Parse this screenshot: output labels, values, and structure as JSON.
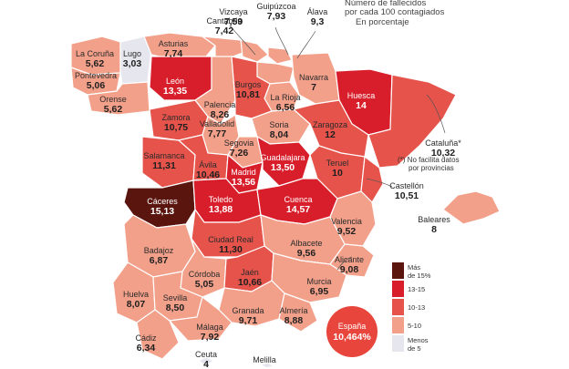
{
  "title_lines": [
    "Número de fallecidos",
    "por cada 100 contagiados",
    "En porcentaje"
  ],
  "colors": {
    "dark": "#5a150f",
    "red": "#d81e2b",
    "mid": "#e5534b",
    "light": "#f2a08a",
    "pale": "#e6e6ee",
    "sea": "#ffffff",
    "bubble": "#e8453c"
  },
  "legend": [
    {
      "label_lines": [
        "Más",
        "de 15%"
      ],
      "color_key": "dark"
    },
    {
      "label_lines": [
        "13-15"
      ],
      "color_key": "red"
    },
    {
      "label_lines": [
        "10-13"
      ],
      "color_key": "mid"
    },
    {
      "label_lines": [
        "5-10"
      ],
      "color_key": "light"
    },
    {
      "label_lines": [
        "Menos",
        "de 5"
      ],
      "color_key": "pale"
    }
  ],
  "provinces": [
    {
      "name": "La Coruña",
      "value": "5,62",
      "category": "light"
    },
    {
      "name": "Lugo",
      "value": "3,03",
      "category": "pale"
    },
    {
      "name": "Pontevedra",
      "value": "5,06",
      "category": "light"
    },
    {
      "name": "Orense",
      "value": "5,62",
      "category": "light"
    },
    {
      "name": "Asturias",
      "value": "7,74",
      "category": "light"
    },
    {
      "name": "Cantabria",
      "value": "7,42",
      "category": "light"
    },
    {
      "name": "Vizcaya",
      "value": "7,59",
      "category": "light"
    },
    {
      "name": "Guipúzcoa",
      "value": "7,93",
      "category": "light"
    },
    {
      "name": "Álava",
      "value": "9,3",
      "category": "light"
    },
    {
      "name": "Navarra",
      "value": "7",
      "category": "light"
    },
    {
      "name": "La Rioja",
      "value": "6,56",
      "category": "light"
    },
    {
      "name": "León",
      "value": "13,35",
      "category": "red"
    },
    {
      "name": "Palencia",
      "value": "8,26",
      "category": "light"
    },
    {
      "name": "Burgos",
      "value": "10,81",
      "category": "mid"
    },
    {
      "name": "Zamora",
      "value": "10,75",
      "category": "mid"
    },
    {
      "name": "Valladolid",
      "value": "7,77",
      "category": "light"
    },
    {
      "name": "Soria",
      "value": "8,04",
      "category": "light"
    },
    {
      "name": "Huesca",
      "value": "14",
      "category": "red"
    },
    {
      "name": "Zaragoza",
      "value": "12",
      "category": "mid"
    },
    {
      "name": "Cataluña*",
      "value": "10,32",
      "category": "mid"
    },
    {
      "name": "Segovia",
      "value": "7,26",
      "category": "light"
    },
    {
      "name": "Salamanca",
      "value": "11,31",
      "category": "mid"
    },
    {
      "name": "Ávila",
      "value": "10,46",
      "category": "mid"
    },
    {
      "name": "Madrid",
      "value": "13,56",
      "category": "red"
    },
    {
      "name": "Guadalajara",
      "value": "13,50",
      "category": "red"
    },
    {
      "name": "Teruel",
      "value": "10",
      "category": "mid"
    },
    {
      "name": "Castellón",
      "value": "10,51",
      "category": "mid"
    },
    {
      "name": "Cáceres",
      "value": "15,13",
      "category": "dark"
    },
    {
      "name": "Toledo",
      "value": "13,88",
      "category": "red"
    },
    {
      "name": "Cuenca",
      "value": "14,57",
      "category": "red"
    },
    {
      "name": "Valencia",
      "value": "9,52",
      "category": "light"
    },
    {
      "name": "Baleares",
      "value": "8",
      "category": "light"
    },
    {
      "name": "Badajoz",
      "value": "6,87",
      "category": "light"
    },
    {
      "name": "Ciudad Real",
      "value": "11,30",
      "category": "mid"
    },
    {
      "name": "Albacete",
      "value": "9,56",
      "category": "light"
    },
    {
      "name": "Alicante",
      "value": "9,08",
      "category": "light"
    },
    {
      "name": "Córdoba",
      "value": "5,05",
      "category": "light"
    },
    {
      "name": "Jaén",
      "value": "10,66",
      "category": "mid"
    },
    {
      "name": "Murcia",
      "value": "6,95",
      "category": "light"
    },
    {
      "name": "Huelva",
      "value": "8,07",
      "category": "light"
    },
    {
      "name": "Sevilla",
      "value": "8,50",
      "category": "light"
    },
    {
      "name": "Granada",
      "value": "9,71",
      "category": "light"
    },
    {
      "name": "Almería",
      "value": "8,88",
      "category": "light"
    },
    {
      "name": "Cádiz",
      "value": "6,34",
      "category": "light"
    },
    {
      "name": "Málaga",
      "value": "7,92",
      "category": "light"
    },
    {
      "name": "Ceuta",
      "value": "4",
      "category": "pale"
    },
    {
      "name": "Melilla",
      "value": "",
      "category": "pale"
    }
  ],
  "footnote_lines": [
    "(*) No facilita datos",
    "por provincias"
  ],
  "national": {
    "name": "España",
    "value": "10,464%"
  }
}
